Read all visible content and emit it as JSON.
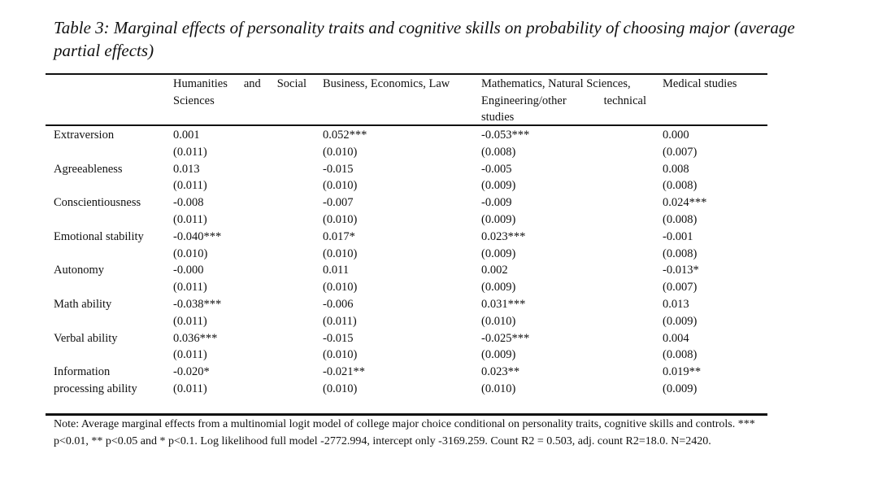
{
  "caption": "Table 3: Marginal effects of personality traits and cognitive skills on probability of choosing major (average partial effects)",
  "columns": [
    {
      "lines": [
        "Humanities and Social",
        "Sciences"
      ],
      "justify_first": true
    },
    {
      "lines": [
        "Business, Economics, Law"
      ],
      "justify_first": false
    },
    {
      "lines": [
        "Mathematics, Natural Sciences,",
        "Engineering/other technical",
        "studies"
      ],
      "justify_first": false,
      "justify_second": true
    },
    {
      "lines": [
        "Medical studies"
      ],
      "justify_first": false
    }
  ],
  "rows": [
    {
      "label": [
        "Extraversion",
        ""
      ],
      "coef": [
        "0.001",
        "0.052***",
        "-0.053***",
        "0.000"
      ],
      "se": [
        "(0.011)",
        "(0.010)",
        "(0.008)",
        "(0.007)"
      ]
    },
    {
      "label": [
        "Agreeableness",
        ""
      ],
      "coef": [
        "0.013",
        "-0.015",
        "-0.005",
        "0.008"
      ],
      "se": [
        "(0.011)",
        "(0.010)",
        "(0.009)",
        "(0.008)"
      ]
    },
    {
      "label": [
        "Conscientiousness",
        ""
      ],
      "coef": [
        "-0.008",
        "-0.007",
        "-0.009",
        "0.024***"
      ],
      "se": [
        "(0.011)",
        "(0.010)",
        "(0.009)",
        "(0.008)"
      ]
    },
    {
      "label": [
        "Emotional stability",
        ""
      ],
      "coef": [
        "-0.040***",
        "0.017*",
        "0.023***",
        "-0.001"
      ],
      "se": [
        "(0.010)",
        "(0.010)",
        "(0.009)",
        "(0.008)"
      ]
    },
    {
      "label": [
        "Autonomy",
        ""
      ],
      "coef": [
        "-0.000",
        "0.011",
        "0.002",
        "-0.013*"
      ],
      "se": [
        "(0.011)",
        "(0.010)",
        "(0.009)",
        "(0.007)"
      ]
    },
    {
      "label": [
        "Math ability",
        ""
      ],
      "coef": [
        "-0.038***",
        "-0.006",
        "0.031***",
        "0.013"
      ],
      "se": [
        "(0.011)",
        "(0.011)",
        "(0.010)",
        "(0.009)"
      ]
    },
    {
      "label": [
        "Verbal ability",
        ""
      ],
      "coef": [
        "0.036***",
        "-0.015",
        "-0.025***",
        "0.004"
      ],
      "se": [
        "(0.011)",
        "(0.010)",
        "(0.009)",
        "(0.008)"
      ]
    },
    {
      "label": [
        "Information",
        "processing ability"
      ],
      "coef": [
        "-0.020*",
        "-0.021**",
        "0.023**",
        "0.019**"
      ],
      "se": [
        "(0.011)",
        "(0.010)",
        "(0.010)",
        "(0.009)"
      ]
    }
  ],
  "note": "Note: Average marginal effects from a multinomial logit model of college major choice conditional on personality traits, cognitive skills and controls. *** p<0.01, ** p<0.05 and * p<0.1. Log likelihood full model -2772.994, intercept only -3169.259. Count R2 = 0.503, adj. count R2=18.0. N=2420."
}
